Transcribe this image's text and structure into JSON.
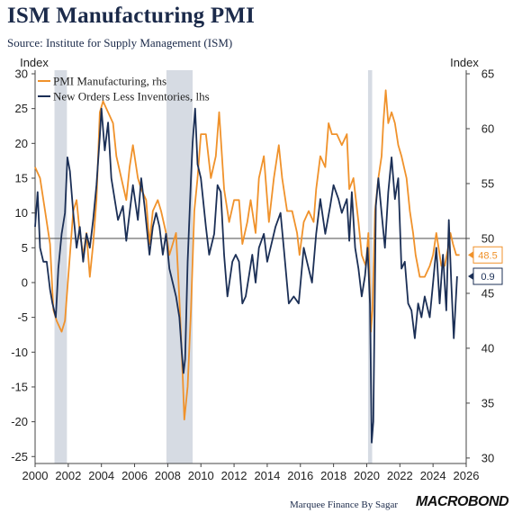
{
  "title": "ISM Manufacturing PMI",
  "subtitle": "Source: Institute for Supply Management (ISM)",
  "footer": "Marquee Finance By Sagar",
  "brand": "MACROBOND",
  "chart_data": {
    "type": "line",
    "y_left_label": "Index",
    "y_right_label": "Index",
    "x_ticks": [
      "2000",
      "2002",
      "2004",
      "2006",
      "2008",
      "2010",
      "2012",
      "2014",
      "2016",
      "2018",
      "2020",
      "2022",
      "2024",
      "2026"
    ],
    "x_range": [
      2000,
      2026
    ],
    "y_left_ticks": [
      30,
      25,
      20,
      15,
      10,
      5,
      0,
      -5,
      -10,
      -15,
      -20,
      -25
    ],
    "y_left_range": [
      -26,
      30
    ],
    "y_right_ticks": [
      65,
      60,
      55,
      50,
      45,
      40,
      35,
      30
    ],
    "y_right_range": [
      29.5,
      65
    ],
    "reference_line_right": 50,
    "recessions": [
      [
        2001.17,
        2001.92
      ],
      [
        2007.92,
        2009.5
      ],
      [
        2020.08,
        2020.33
      ]
    ],
    "series": [
      {
        "name": "PMI Manufacturing, rhs",
        "axis": "right",
        "color": "#f0922b",
        "end_label": "48.5",
        "points": [
          [
            2000.0,
            56.5
          ],
          [
            2000.3,
            55.5
          ],
          [
            2000.6,
            52.5
          ],
          [
            2000.9,
            49.5
          ],
          [
            2001.1,
            43.5
          ],
          [
            2001.3,
            42.5
          ],
          [
            2001.6,
            41.5
          ],
          [
            2001.8,
            42.5
          ],
          [
            2001.9,
            44.5
          ],
          [
            2002.1,
            48.5
          ],
          [
            2002.3,
            52.5
          ],
          [
            2002.5,
            53.5
          ],
          [
            2002.7,
            50.5
          ],
          [
            2002.9,
            48.5
          ],
          [
            2003.1,
            50.5
          ],
          [
            2003.3,
            46.5
          ],
          [
            2003.5,
            49.5
          ],
          [
            2003.7,
            53.5
          ],
          [
            2003.9,
            61.5
          ],
          [
            2004.1,
            62.5
          ],
          [
            2004.4,
            61.5
          ],
          [
            2004.7,
            60.5
          ],
          [
            2004.9,
            57.5
          ],
          [
            2005.2,
            55.5
          ],
          [
            2005.5,
            53.5
          ],
          [
            2005.7,
            56.5
          ],
          [
            2005.9,
            58.5
          ],
          [
            2006.2,
            55.5
          ],
          [
            2006.4,
            54.5
          ],
          [
            2006.7,
            53.5
          ],
          [
            2006.9,
            49.5
          ],
          [
            2007.1,
            52.5
          ],
          [
            2007.4,
            53.5
          ],
          [
            2007.6,
            52.5
          ],
          [
            2007.9,
            50.5
          ],
          [
            2008.1,
            48.5
          ],
          [
            2008.3,
            49.5
          ],
          [
            2008.5,
            50.5
          ],
          [
            2008.7,
            44.5
          ],
          [
            2008.9,
            37.5
          ],
          [
            2009.0,
            33.5
          ],
          [
            2009.2,
            36.5
          ],
          [
            2009.4,
            43.5
          ],
          [
            2009.6,
            52.5
          ],
          [
            2009.8,
            55.5
          ],
          [
            2010.0,
            59.5
          ],
          [
            2010.3,
            59.5
          ],
          [
            2010.6,
            55.5
          ],
          [
            2010.9,
            57.5
          ],
          [
            2011.1,
            61.5
          ],
          [
            2011.4,
            54.5
          ],
          [
            2011.7,
            51.5
          ],
          [
            2012.0,
            53.5
          ],
          [
            2012.3,
            53.5
          ],
          [
            2012.5,
            49.5
          ],
          [
            2012.8,
            51.5
          ],
          [
            2013.0,
            53.5
          ],
          [
            2013.3,
            50.5
          ],
          [
            2013.5,
            55.5
          ],
          [
            2013.8,
            57.5
          ],
          [
            2014.1,
            51.5
          ],
          [
            2014.4,
            55.5
          ],
          [
            2014.7,
            58.5
          ],
          [
            2014.9,
            55.5
          ],
          [
            2015.2,
            52.5
          ],
          [
            2015.5,
            52.5
          ],
          [
            2015.8,
            50.5
          ],
          [
            2015.95,
            48.5
          ],
          [
            2016.2,
            51.5
          ],
          [
            2016.5,
            52.5
          ],
          [
            2016.8,
            51.5
          ],
          [
            2016.95,
            54.5
          ],
          [
            2017.2,
            57.5
          ],
          [
            2017.5,
            56.5
          ],
          [
            2017.7,
            60.5
          ],
          [
            2017.9,
            59.5
          ],
          [
            2018.2,
            59.5
          ],
          [
            2018.5,
            58.5
          ],
          [
            2018.8,
            59.5
          ],
          [
            2018.95,
            54.5
          ],
          [
            2019.2,
            55.5
          ],
          [
            2019.5,
            51.5
          ],
          [
            2019.7,
            48.5
          ],
          [
            2019.95,
            47.5
          ],
          [
            2020.1,
            50.5
          ],
          [
            2020.25,
            41.5
          ],
          [
            2020.35,
            43.5
          ],
          [
            2020.5,
            52.5
          ],
          [
            2020.7,
            55.5
          ],
          [
            2020.9,
            57.5
          ],
          [
            2021.0,
            60.5
          ],
          [
            2021.15,
            63.5
          ],
          [
            2021.3,
            60.5
          ],
          [
            2021.5,
            61.5
          ],
          [
            2021.7,
            60.5
          ],
          [
            2021.9,
            58.5
          ],
          [
            2022.1,
            57.5
          ],
          [
            2022.4,
            55.5
          ],
          [
            2022.6,
            52.5
          ],
          [
            2022.8,
            50.5
          ],
          [
            2022.95,
            48.5
          ],
          [
            2023.2,
            46.5
          ],
          [
            2023.5,
            46.5
          ],
          [
            2023.8,
            47.5
          ],
          [
            2024.0,
            48.5
          ],
          [
            2024.2,
            50.5
          ],
          [
            2024.5,
            47.5
          ],
          [
            2024.7,
            47.5
          ],
          [
            2024.95,
            49.5
          ],
          [
            2025.05,
            50.5
          ],
          [
            2025.2,
            49.5
          ],
          [
            2025.4,
            48.5
          ],
          [
            2025.6,
            48.5
          ]
        ]
      },
      {
        "name": "New Orders Less Inventories, lhs",
        "axis": "left",
        "color": "#1b2f56",
        "end_label": "0.9",
        "points": [
          [
            2000.0,
            8
          ],
          [
            2000.15,
            13
          ],
          [
            2000.3,
            5
          ],
          [
            2000.5,
            3
          ],
          [
            2000.7,
            3
          ],
          [
            2000.9,
            -1
          ],
          [
            2001.05,
            -3
          ],
          [
            2001.25,
            -5
          ],
          [
            2001.4,
            2
          ],
          [
            2001.6,
            7
          ],
          [
            2001.8,
            10
          ],
          [
            2001.95,
            18
          ],
          [
            2002.1,
            16
          ],
          [
            2002.3,
            10
          ],
          [
            2002.5,
            5
          ],
          [
            2002.7,
            8
          ],
          [
            2002.9,
            3
          ],
          [
            2003.1,
            7
          ],
          [
            2003.3,
            5
          ],
          [
            2003.5,
            9
          ],
          [
            2003.7,
            14
          ],
          [
            2003.9,
            21
          ],
          [
            2004.0,
            25
          ],
          [
            2004.2,
            19
          ],
          [
            2004.4,
            23
          ],
          [
            2004.6,
            15
          ],
          [
            2004.8,
            12
          ],
          [
            2005.0,
            9
          ],
          [
            2005.3,
            11
          ],
          [
            2005.5,
            6
          ],
          [
            2005.7,
            10
          ],
          [
            2005.9,
            14
          ],
          [
            2006.2,
            9
          ],
          [
            2006.4,
            15
          ],
          [
            2006.6,
            11
          ],
          [
            2006.9,
            4
          ],
          [
            2007.1,
            8
          ],
          [
            2007.3,
            10
          ],
          [
            2007.5,
            8
          ],
          [
            2007.7,
            4
          ],
          [
            2007.9,
            7
          ],
          [
            2008.1,
            2
          ],
          [
            2008.3,
            0
          ],
          [
            2008.5,
            -2
          ],
          [
            2008.7,
            -5
          ],
          [
            2008.85,
            -10
          ],
          [
            2008.95,
            -13
          ],
          [
            2009.05,
            -11
          ],
          [
            2009.2,
            3
          ],
          [
            2009.4,
            15
          ],
          [
            2009.5,
            20
          ],
          [
            2009.65,
            25
          ],
          [
            2009.8,
            17
          ],
          [
            2010.0,
            15
          ],
          [
            2010.3,
            8
          ],
          [
            2010.5,
            4
          ],
          [
            2010.8,
            7
          ],
          [
            2011.0,
            14
          ],
          [
            2011.2,
            13
          ],
          [
            2011.4,
            4
          ],
          [
            2011.6,
            -2
          ],
          [
            2011.9,
            3
          ],
          [
            2012.1,
            4
          ],
          [
            2012.3,
            3
          ],
          [
            2012.5,
            -3
          ],
          [
            2012.7,
            -2
          ],
          [
            2012.9,
            1
          ],
          [
            2013.1,
            4
          ],
          [
            2013.3,
            0
          ],
          [
            2013.5,
            5
          ],
          [
            2013.8,
            7
          ],
          [
            2014.0,
            3
          ],
          [
            2014.2,
            5
          ],
          [
            2014.5,
            8
          ],
          [
            2014.8,
            10
          ],
          [
            2015.0,
            5
          ],
          [
            2015.3,
            -3
          ],
          [
            2015.6,
            -2
          ],
          [
            2015.9,
            -3
          ],
          [
            2016.2,
            5
          ],
          [
            2016.4,
            3
          ],
          [
            2016.7,
            0
          ],
          [
            2016.95,
            7
          ],
          [
            2017.2,
            12
          ],
          [
            2017.5,
            7
          ],
          [
            2017.8,
            11
          ],
          [
            2018.0,
            14
          ],
          [
            2018.3,
            12
          ],
          [
            2018.5,
            10
          ],
          [
            2018.8,
            12
          ],
          [
            2018.95,
            6
          ],
          [
            2019.1,
            13
          ],
          [
            2019.3,
            5
          ],
          [
            2019.5,
            2
          ],
          [
            2019.7,
            -2
          ],
          [
            2019.9,
            1
          ],
          [
            2020.05,
            5
          ],
          [
            2020.2,
            -3
          ],
          [
            2020.3,
            -23
          ],
          [
            2020.4,
            -20
          ],
          [
            2020.55,
            11
          ],
          [
            2020.7,
            15
          ],
          [
            2020.9,
            10
          ],
          [
            2021.1,
            5
          ],
          [
            2021.3,
            13
          ],
          [
            2021.5,
            18
          ],
          [
            2021.7,
            12
          ],
          [
            2021.9,
            15
          ],
          [
            2022.1,
            2
          ],
          [
            2022.3,
            3
          ],
          [
            2022.5,
            -3
          ],
          [
            2022.7,
            -4
          ],
          [
            2022.9,
            -8
          ],
          [
            2023.1,
            -3
          ],
          [
            2023.3,
            -5
          ],
          [
            2023.5,
            -2
          ],
          [
            2023.8,
            -5
          ],
          [
            2024.0,
            0
          ],
          [
            2024.2,
            5
          ],
          [
            2024.4,
            -3
          ],
          [
            2024.6,
            4
          ],
          [
            2024.8,
            -4
          ],
          [
            2024.95,
            9
          ],
          [
            2025.1,
            0
          ],
          [
            2025.25,
            -8
          ],
          [
            2025.45,
            0.9
          ]
        ]
      }
    ]
  }
}
